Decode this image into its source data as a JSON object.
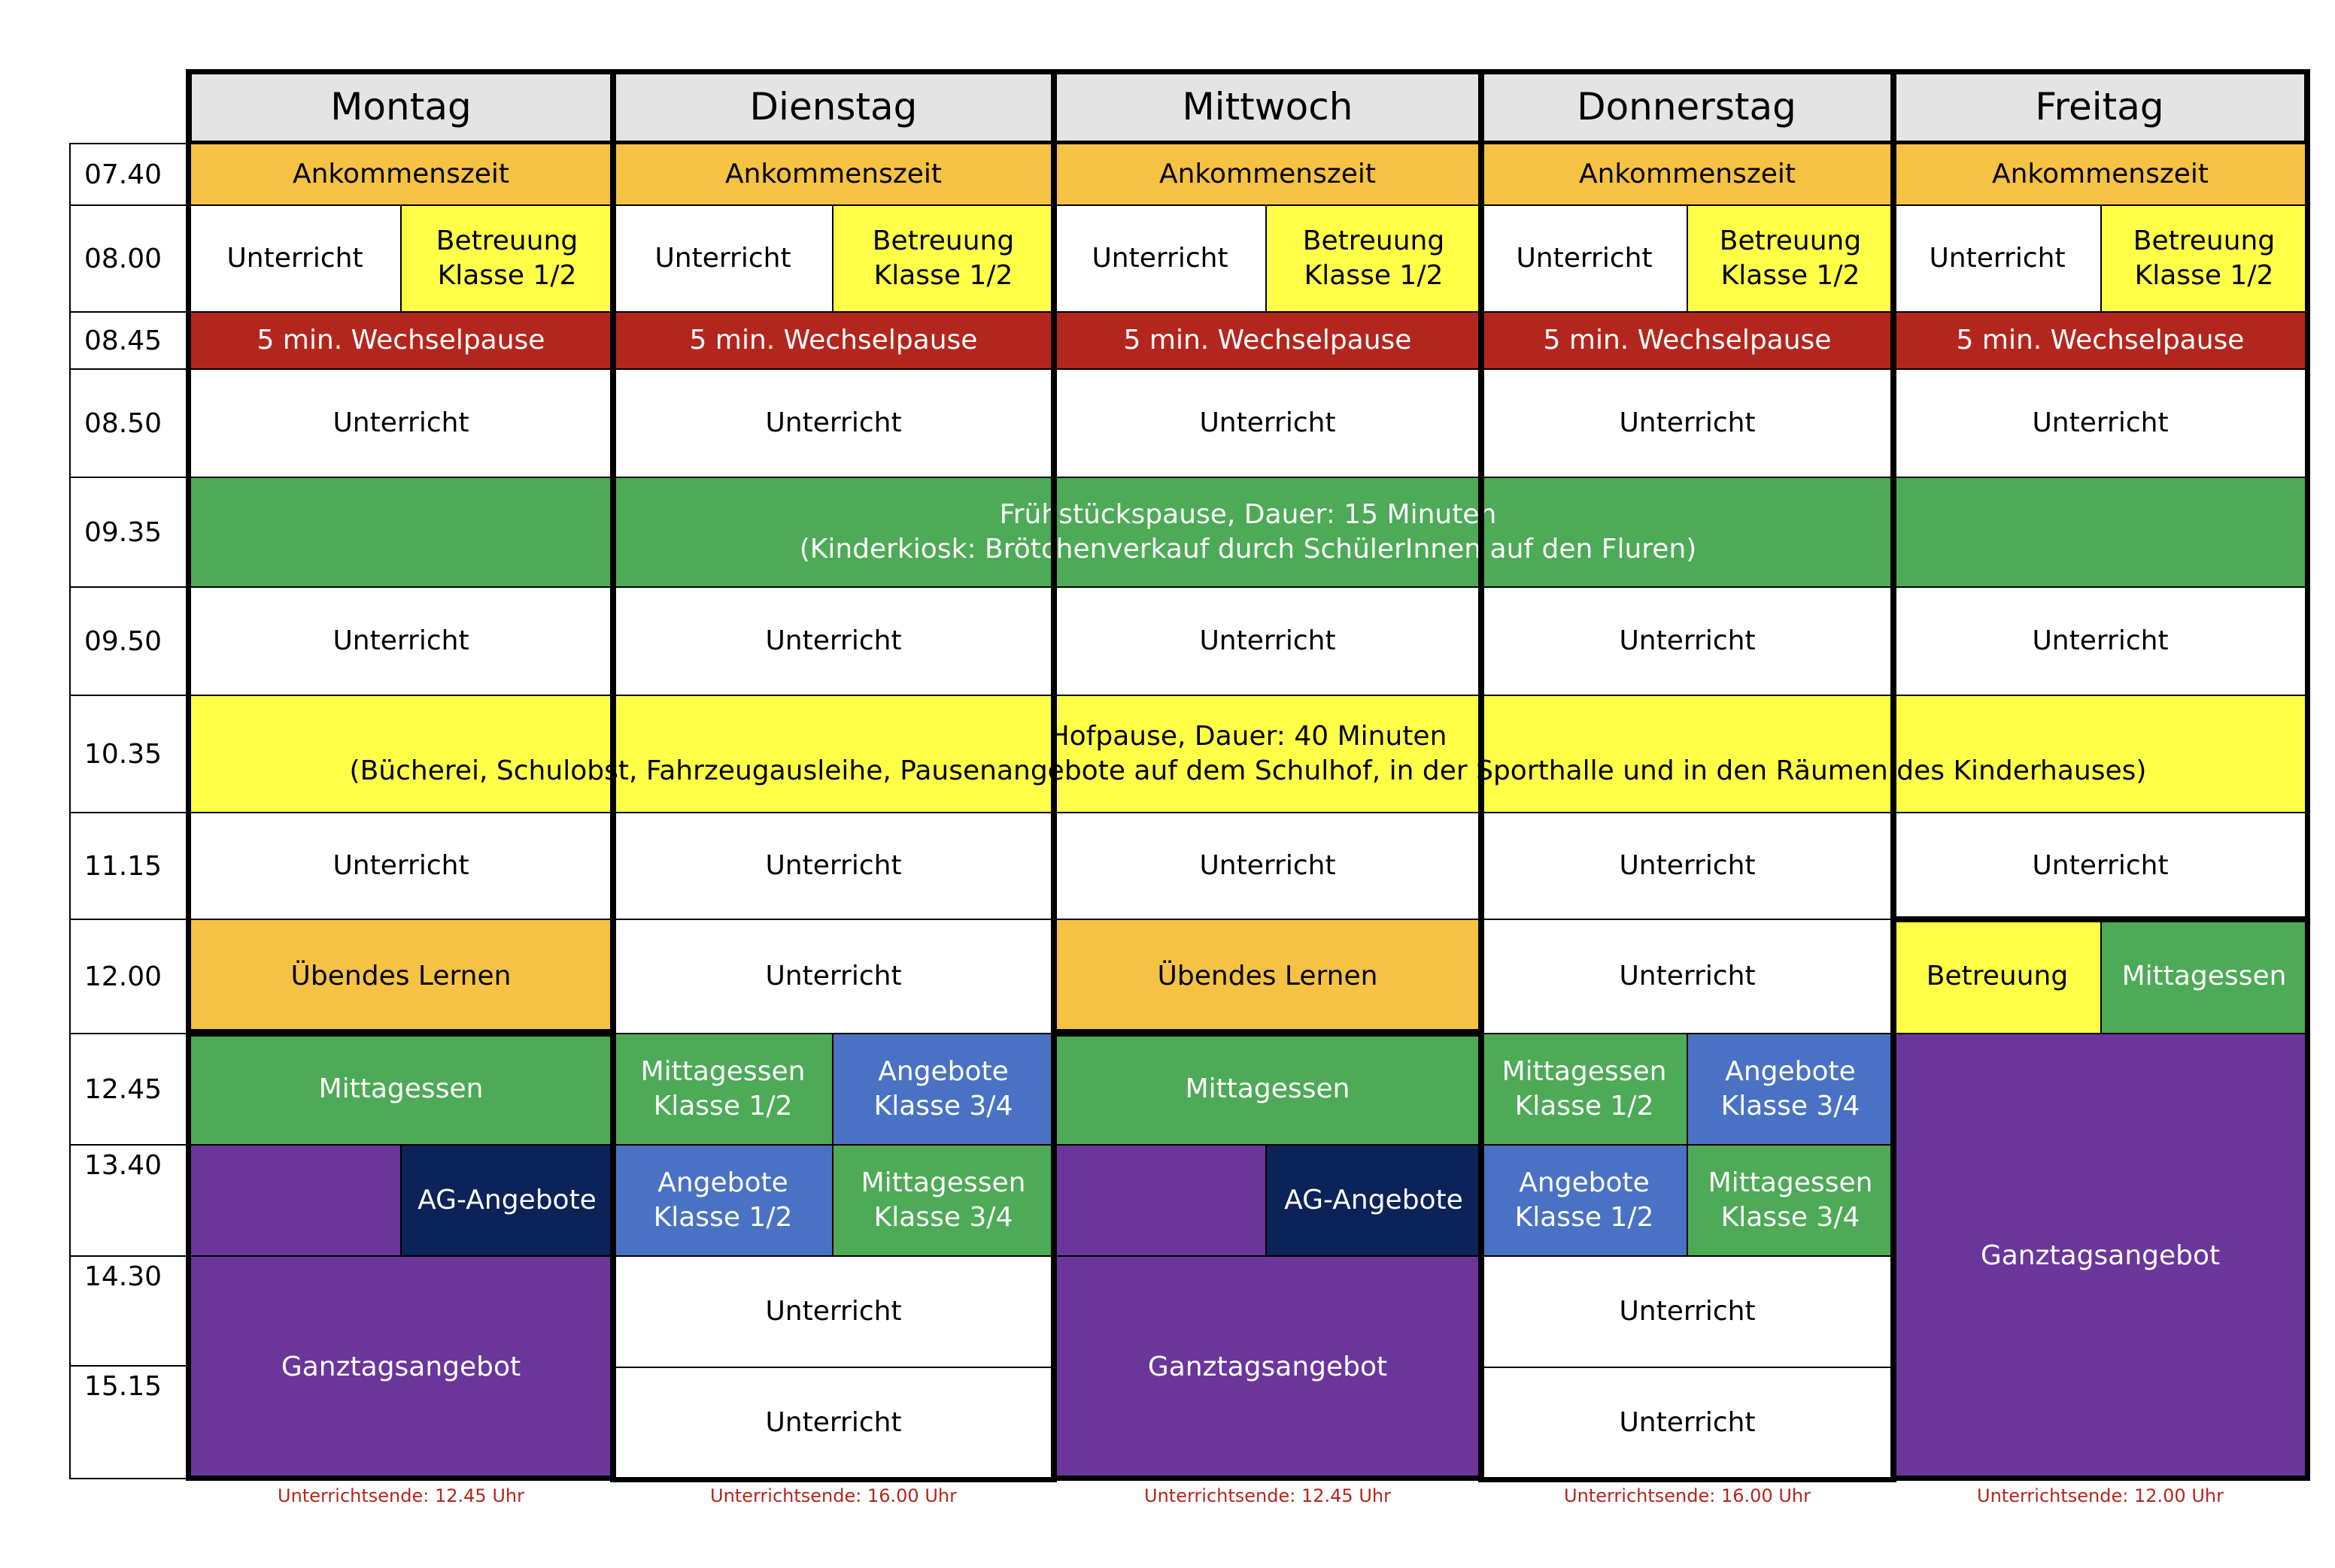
{
  "days": [
    "Montag",
    "Dienstag",
    "Mittwoch",
    "Donnerstag",
    "Freitag"
  ],
  "times": [
    "07.40",
    "08.00",
    "08.45",
    "08.50",
    "09.35",
    "09.50",
    "10.35",
    "11.15",
    "12.00",
    "12.45",
    "13.40",
    "14.30",
    "15.15"
  ],
  "labels": {
    "ankommen": "Ankommenszeit",
    "unterricht": "Unterricht",
    "betreuung_l1": "Betreuung",
    "betreuung_l2": "Klasse 1/2",
    "wechsel": "5 min. Wechselpause",
    "fruehstueck_l1": "Frühstückspause, Dauer: 15 Minuten",
    "fruehstueck_l2": "(Kinderkiosk: Brötchenverkauf durch SchülerInnen auf den Fluren)",
    "hof_l1": "Hofpause, Dauer: 40 Minuten",
    "hof_l2": "(Bücherei, Schulobst, Fahrzeugausleihe, Pausenangebote auf dem Schulhof, in der Sporthalle und in den Räumen des Kinderhauses)",
    "uebendes": "Übendes Lernen",
    "betreuung": "Betreuung",
    "mittagessen": "Mittagessen",
    "mittag12_l1": "Mittagessen",
    "mittag12_l2": "Klasse 1/2",
    "mittag34_l1": "Mittagessen",
    "mittag34_l2": "Klasse 3/4",
    "angebote12_l1": "Angebote",
    "angebote12_l2": "Klasse 1/2",
    "angebote34_l1": "Angebote",
    "angebote34_l2": "Klasse 3/4",
    "ag": "AG-Angebote",
    "ganztag": "Ganztagsangebot"
  },
  "footers": [
    "Unterrichtsende: 12.45 Uhr",
    "Unterrichtsende: 16.00 Uhr",
    "Unterrichtsende: 12.45 Uhr",
    "Unterrichtsende: 16.00 Uhr",
    "Unterrichtsende: 12.00 Uhr"
  ],
  "colors": {
    "orange": "#f5c243",
    "yellow": "#ffff47",
    "red": "#b3261e",
    "green": "#4daa57",
    "blue": "#4a72c4",
    "navy": "#0c2359",
    "purple": "#6a369b",
    "header_gray": "#e4e4e4",
    "white": "#ffffff"
  }
}
